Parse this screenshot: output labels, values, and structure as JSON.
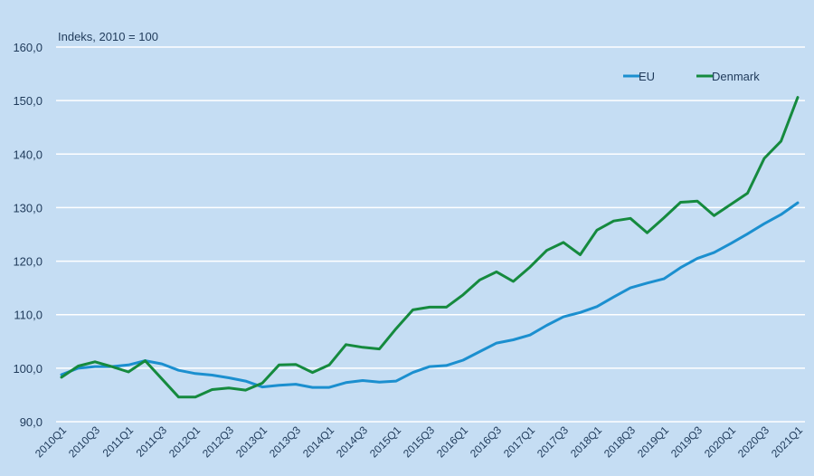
{
  "chart_data": {
    "type": "line",
    "unit_label": "Indeks, 2010 = 100",
    "ylim": [
      90,
      160
    ],
    "yticks": [
      "160,0",
      "150,0",
      "140,0",
      "130,0",
      "120,0",
      "110,0",
      "100,0",
      "90,0"
    ],
    "ytick_values": [
      160,
      150,
      140,
      130,
      120,
      110,
      100,
      90
    ],
    "grid": true,
    "legend_position": "top-right",
    "x": [
      "2010Q1",
      "2010Q2",
      "2010Q3",
      "2010Q4",
      "2011Q1",
      "2011Q2",
      "2011Q3",
      "2011Q4",
      "2012Q1",
      "2012Q2",
      "2012Q3",
      "2012Q4",
      "2013Q1",
      "2013Q2",
      "2013Q3",
      "2013Q4",
      "2014Q1",
      "2014Q2",
      "2014Q3",
      "2014Q4",
      "2015Q1",
      "2015Q2",
      "2015Q3",
      "2015Q4",
      "2016Q1",
      "2016Q2",
      "2016Q3",
      "2016Q4",
      "2017Q1",
      "2017Q2",
      "2017Q3",
      "2017Q4",
      "2018Q1",
      "2018Q2",
      "2018Q3",
      "2018Q4",
      "2019Q1",
      "2019Q2",
      "2019Q3",
      "2019Q4",
      "2020Q1",
      "2020Q2",
      "2020Q3",
      "2020Q4",
      "2021Q1"
    ],
    "xtick_labels": [
      "2010Q1",
      "2010Q3",
      "2011Q1",
      "2011Q3",
      "2012Q1",
      "2012Q3",
      "2013Q1",
      "2013Q3",
      "2014Q1",
      "2014Q3",
      "2015Q1",
      "2015Q3",
      "2016Q1",
      "2016Q3",
      "2017Q1",
      "2017Q3",
      "2018Q1",
      "2018Q3",
      "2019Q1",
      "2019Q3",
      "2020Q1",
      "2020Q3",
      "2021Q1"
    ],
    "series": [
      {
        "name": "EU",
        "color": "#1b8fcf",
        "values": [
          98.8,
          100.0,
          100.3,
          100.3,
          100.6,
          101.4,
          100.8,
          99.6,
          99.0,
          98.7,
          98.2,
          97.6,
          96.5,
          96.8,
          97.0,
          96.4,
          96.4,
          97.3,
          97.7,
          97.4,
          97.6,
          99.2,
          100.3,
          100.5,
          101.5,
          103.1,
          104.7,
          105.3,
          106.2,
          108.0,
          109.6,
          110.4,
          111.5,
          113.3,
          115.0,
          115.9,
          116.7,
          118.8,
          120.5,
          121.6,
          123.3,
          125.1,
          127.0,
          128.7,
          130.9
        ]
      },
      {
        "name": "Denmark",
        "color": "#158a3e",
        "values": [
          98.3,
          100.4,
          101.2,
          100.3,
          99.3,
          101.4,
          98.0,
          94.6,
          94.6,
          96.0,
          96.3,
          95.9,
          97.2,
          100.6,
          100.7,
          99.2,
          100.6,
          104.4,
          103.9,
          103.6,
          107.4,
          110.9,
          111.4,
          111.4,
          113.7,
          116.5,
          118.0,
          116.2,
          118.9,
          122.0,
          123.5,
          121.2,
          125.8,
          127.5,
          128.0,
          125.3,
          128.1,
          131.0,
          131.2,
          128.5,
          130.6,
          132.7,
          139.2,
          142.4,
          150.6
        ]
      }
    ]
  }
}
